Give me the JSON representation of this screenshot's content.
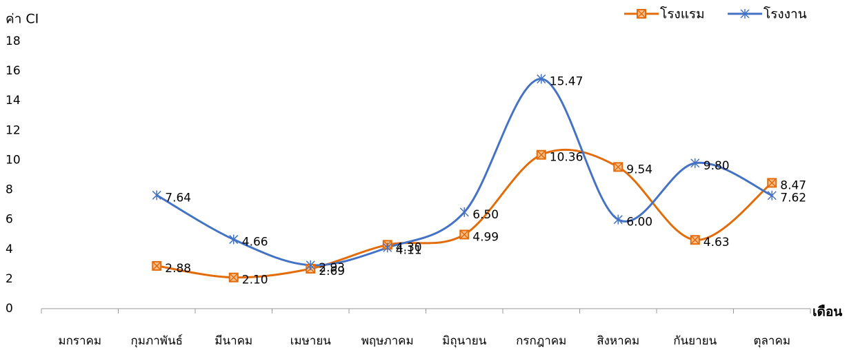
{
  "chart_data": {
    "type": "line",
    "y_label": "ค่า CI",
    "x_label": "เดือน",
    "categories": [
      "มกราคม",
      "กุมภาพันธ์",
      "มีนาคม",
      "เมษายน",
      "พฤษภาคม",
      "มิถุนายน",
      "กรกฎาคม",
      "สิงหาคม",
      "กันยายน",
      "ตุลาคม"
    ],
    "series": [
      {
        "name": "โรงแรม",
        "color": "#e36c0a",
        "marker": "square",
        "values": [
          null,
          2.88,
          2.1,
          2.69,
          4.3,
          4.99,
          10.36,
          9.54,
          4.63,
          8.47
        ],
        "value_labels": [
          null,
          "2.88",
          "2.10",
          "2.69",
          "4.30",
          "4.99",
          "10.36",
          "9.54",
          "4.63",
          "8.47"
        ]
      },
      {
        "name": "โรงงาน",
        "color": "#4472c4",
        "marker": "star",
        "values": [
          null,
          7.64,
          4.66,
          2.93,
          4.11,
          6.5,
          15.47,
          6.0,
          9.8,
          7.62
        ],
        "value_labels": [
          null,
          "7.64",
          "4.66",
          "2.93",
          "4.11",
          "6.50",
          "15.47",
          "6.00",
          "9.80",
          "7.62"
        ]
      }
    ],
    "ylim": [
      0,
      18
    ],
    "yticks": [
      0,
      2,
      4,
      6,
      8,
      10,
      12,
      14,
      16,
      18
    ],
    "smooth": true,
    "legend": "top-right"
  }
}
